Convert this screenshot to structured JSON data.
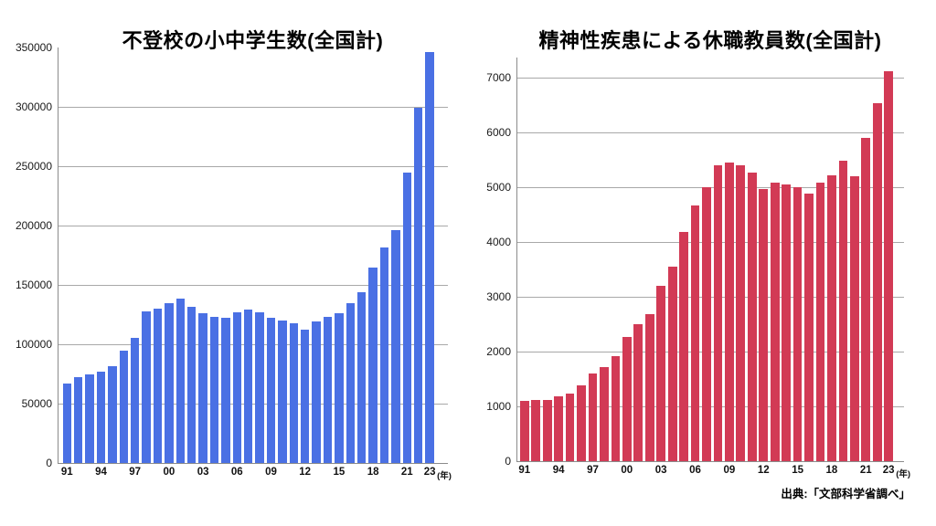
{
  "page": {
    "background": "#ffffff"
  },
  "footer": {
    "source_label": "出典:「文部科学省調べ」"
  },
  "chart_data": [
    {
      "type": "bar",
      "title": "不登校の小中学生数(全国計)",
      "xlabel": "",
      "ylabel": "",
      "unit_label": "(年)",
      "categories": [
        "91",
        "92",
        "93",
        "94",
        "95",
        "96",
        "97",
        "98",
        "99",
        "00",
        "01",
        "02",
        "03",
        "04",
        "05",
        "06",
        "07",
        "08",
        "09",
        "10",
        "11",
        "12",
        "13",
        "14",
        "15",
        "16",
        "17",
        "18",
        "19",
        "20",
        "21",
        "22",
        "23"
      ],
      "values": [
        66817,
        72131,
        74808,
        77310,
        81562,
        94461,
        105414,
        127692,
        130227,
        134286,
        138722,
        131211,
        126226,
        123358,
        122287,
        126894,
        129255,
        126805,
        122432,
        119891,
        117458,
        112689,
        119617,
        122897,
        126009,
        134398,
        144031,
        164528,
        181272,
        196127,
        244940,
        299048,
        346482
      ],
      "ylim": [
        0,
        350000
      ],
      "ytick_step": 50000,
      "ytick_labels": [
        "0",
        "50000",
        "100000",
        "150000",
        "200000",
        "250000",
        "300000",
        "350000"
      ],
      "xticks": [
        {
          "i": 0,
          "label": "91"
        },
        {
          "i": 3,
          "label": "94"
        },
        {
          "i": 6,
          "label": "97"
        },
        {
          "i": 9,
          "label": "00"
        },
        {
          "i": 12,
          "label": "03"
        },
        {
          "i": 15,
          "label": "06"
        },
        {
          "i": 18,
          "label": "09"
        },
        {
          "i": 21,
          "label": "12"
        },
        {
          "i": 24,
          "label": "15"
        },
        {
          "i": 27,
          "label": "18"
        },
        {
          "i": 30,
          "label": "21"
        },
        {
          "i": 32,
          "label": "23"
        }
      ],
      "grid": "horizontal",
      "top_gridline": false,
      "legend": "none",
      "bar_color": "#4a70e4",
      "gridline_color": "#a8a8a8",
      "axis_color": "#8b8b8b"
    },
    {
      "type": "bar",
      "title": "精神性疾患による休職教員数(全国計)",
      "xlabel": "",
      "ylabel": "",
      "unit_label": "(年)",
      "categories": [
        "91",
        "92",
        "93",
        "94",
        "95",
        "96",
        "97",
        "98",
        "99",
        "00",
        "01",
        "02",
        "03",
        "04",
        "05",
        "06",
        "07",
        "08",
        "09",
        "10",
        "11",
        "12",
        "13",
        "14",
        "15",
        "16",
        "17",
        "18",
        "19",
        "20",
        "21",
        "22",
        "23"
      ],
      "values": [
        1100,
        1110,
        1110,
        1190,
        1240,
        1385,
        1609,
        1715,
        1924,
        2262,
        2503,
        2687,
        3194,
        3559,
        4178,
        4675,
        4995,
        5400,
        5458,
        5407,
        5274,
        4960,
        5078,
        5045,
        5009,
        4891,
        5077,
        5212,
        5478,
        5203,
        5897,
        6539,
        7119
      ],
      "ylim": [
        0,
        7000
      ],
      "ytick_step": 1000,
      "ytick_labels": [
        "0",
        "1000",
        "2000",
        "3000",
        "4000",
        "5000",
        "6000",
        "7000"
      ],
      "xticks": [
        {
          "i": 0,
          "label": "91"
        },
        {
          "i": 3,
          "label": "94"
        },
        {
          "i": 6,
          "label": "97"
        },
        {
          "i": 9,
          "label": "00"
        },
        {
          "i": 12,
          "label": "03"
        },
        {
          "i": 15,
          "label": "06"
        },
        {
          "i": 18,
          "label": "09"
        },
        {
          "i": 21,
          "label": "12"
        },
        {
          "i": 24,
          "label": "15"
        },
        {
          "i": 27,
          "label": "18"
        },
        {
          "i": 30,
          "label": "21"
        },
        {
          "i": 32,
          "label": "23"
        }
      ],
      "grid": "horizontal",
      "top_gridline": true,
      "legend": "none",
      "bar_color": "#d23a55",
      "gridline_color": "#a8a8a8",
      "axis_color": "#8b8b8b"
    }
  ]
}
